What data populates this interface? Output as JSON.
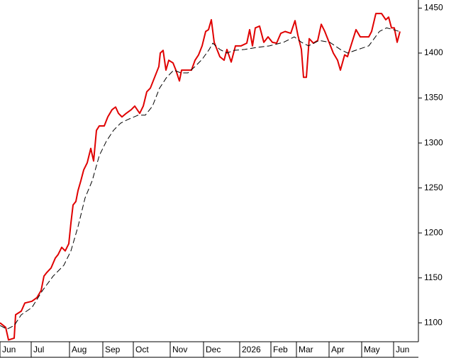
{
  "chart_data": {
    "type": "line",
    "xlim": [
      0,
      295
    ],
    "ylim": [
      1079,
      1459
    ],
    "yticks": [
      1100,
      1150,
      1200,
      1250,
      1300,
      1350,
      1400,
      1450
    ],
    "xticks": [
      {
        "value": 0,
        "label": "Jun"
      },
      {
        "value": 22,
        "label": "Jul"
      },
      {
        "value": 49,
        "label": "Aug"
      },
      {
        "value": 72.5,
        "label": "Sep"
      },
      {
        "value": 94,
        "label": "Oct"
      },
      {
        "value": 120,
        "label": "Nov"
      },
      {
        "value": 143.5,
        "label": "Dec"
      },
      {
        "value": 169,
        "label": "2026"
      },
      {
        "value": 191,
        "label": "Feb"
      },
      {
        "value": 209,
        "label": "Mar"
      },
      {
        "value": 232,
        "label": "Apr"
      },
      {
        "value": 255,
        "label": "May"
      },
      {
        "value": 277.5,
        "label": "Jun"
      }
    ],
    "series": [
      {
        "color": "#e00000",
        "x": [
          0,
          4,
          6,
          10,
          11,
          15,
          17.5,
          22.5,
          26,
          29,
          31,
          33,
          36,
          39,
          41,
          43.5,
          46,
          48.5,
          50,
          51.5,
          53.5,
          55,
          57,
          59,
          61.5,
          64,
          66,
          68,
          70,
          73.5,
          76,
          79,
          81.5,
          83.5,
          86,
          89,
          92.5,
          95,
          98.5,
          101,
          103.5,
          106,
          109,
          112,
          113,
          115,
          117,
          119,
          122,
          124,
          126.5,
          128,
          131,
          135,
          137.5,
          140,
          142.5,
          145,
          147,
          149,
          151,
          155,
          158,
          160,
          163,
          166,
          170,
          174,
          176,
          178,
          180,
          183,
          186,
          189,
          192,
          195,
          198,
          201,
          205,
          208,
          210,
          212.5,
          214,
          216,
          218,
          221,
          224,
          226.5,
          229,
          232,
          235,
          238,
          240,
          243,
          245,
          248,
          251,
          254,
          257.5,
          260,
          262,
          265,
          269,
          272,
          274,
          276,
          278,
          280,
          282
        ],
        "values": [
          1100,
          1095,
          1081,
          1083,
          1109,
          1113,
          1122,
          1124,
          1128,
          1136,
          1152,
          1156,
          1161,
          1172,
          1176,
          1184,
          1180,
          1188,
          1211,
          1231,
          1235,
          1247,
          1258,
          1270,
          1278,
          1294,
          1280,
          1314,
          1319,
          1319,
          1329,
          1337,
          1340,
          1333,
          1329,
          1333,
          1337,
          1341,
          1333,
          1341,
          1357,
          1361,
          1373,
          1385,
          1400,
          1403,
          1381,
          1392,
          1389,
          1381,
          1369,
          1381,
          1381,
          1381,
          1392,
          1398,
          1408,
          1424,
          1426,
          1437,
          1412,
          1396,
          1392,
          1404,
          1390,
          1408,
          1408,
          1411,
          1426,
          1408,
          1428,
          1430,
          1412,
          1418,
          1412,
          1411,
          1422,
          1424,
          1422,
          1436,
          1420,
          1404,
          1373,
          1373,
          1416,
          1411,
          1414,
          1432,
          1424,
          1412,
          1400,
          1392,
          1381,
          1398,
          1396,
          1411,
          1426,
          1418,
          1418,
          1418,
          1424,
          1444,
          1444,
          1437,
          1440,
          1428,
          1428,
          1412,
          1424
        ]
      },
      {
        "color": "#000000",
        "dashed": true,
        "x": [
          0,
          5,
          10,
          15,
          22.5,
          30,
          37.5,
          45,
          50,
          55,
          60,
          65,
          70,
          75,
          80,
          85,
          90,
          97.5,
          102.5,
          107.5,
          112.5,
          117.5,
          122.5,
          127.5,
          132.5,
          137.5,
          142.5,
          147.5,
          150,
          155,
          160,
          165,
          172.5,
          180,
          190,
          200,
          207.5,
          212.5,
          217.5,
          225,
          232.5,
          240,
          245,
          252.5,
          260,
          267.5,
          272.5,
          277.5,
          281.5
        ],
        "values": [
          1097,
          1093,
          1097,
          1109,
          1117,
          1136,
          1152,
          1164,
          1180,
          1207,
          1239,
          1258,
          1286,
          1302,
          1314,
          1322,
          1326,
          1331,
          1331,
          1341,
          1361,
          1373,
          1381,
          1378,
          1378,
          1385,
          1393,
          1404,
          1411,
          1404,
          1400,
          1403,
          1404,
          1406,
          1408,
          1412,
          1418,
          1412,
          1408,
          1414,
          1412,
          1404,
          1400,
          1404,
          1408,
          1424,
          1428,
          1426,
          1424
        ]
      }
    ]
  }
}
